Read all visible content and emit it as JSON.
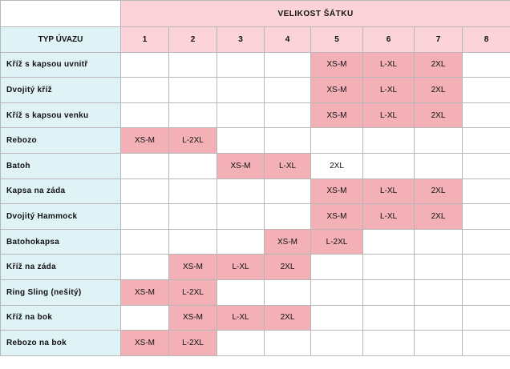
{
  "header": {
    "size_title": "VELIKOST ŠÁTKU",
    "tie_label": "TYP ÚVAZU",
    "sizes": [
      "1",
      "2",
      "3",
      "4",
      "5",
      "6",
      "7",
      "8"
    ]
  },
  "highlight_color": "#f3b0b7",
  "label_bg_color": "#dff2f6",
  "header_bg_color": "#fbd3d8",
  "rows": [
    {
      "name": "Kříž s kapsou uvnitř",
      "cells": [
        "",
        "",
        "",
        "",
        "XS-M",
        "L-XL",
        "2XL",
        ""
      ],
      "filled": [
        false,
        false,
        false,
        false,
        true,
        true,
        true,
        false
      ]
    },
    {
      "name": "Dvojitý kříž",
      "cells": [
        "",
        "",
        "",
        "",
        "XS-M",
        "L-XL",
        "2XL",
        ""
      ],
      "filled": [
        false,
        false,
        false,
        false,
        true,
        true,
        true,
        false
      ]
    },
    {
      "name": "Kříž s kapsou venku",
      "cells": [
        "",
        "",
        "",
        "",
        "XS-M",
        "L-XL",
        "2XL",
        ""
      ],
      "filled": [
        false,
        false,
        false,
        false,
        true,
        true,
        true,
        false
      ]
    },
    {
      "name": "Rebozo",
      "cells": [
        "XS-M",
        "L-2XL",
        "",
        "",
        "",
        "",
        "",
        ""
      ],
      "filled": [
        true,
        true,
        false,
        false,
        false,
        false,
        false,
        false
      ]
    },
    {
      "name": "Batoh",
      "cells": [
        "",
        "",
        "XS-M",
        "L-XL",
        "2XL",
        "",
        "",
        ""
      ],
      "filled": [
        false,
        false,
        true,
        true,
        false,
        false,
        false,
        false
      ]
    },
    {
      "name": "Kapsa na záda",
      "cells": [
        "",
        "",
        "",
        "",
        "XS-M",
        "L-XL",
        "2XL",
        ""
      ],
      "filled": [
        false,
        false,
        false,
        false,
        true,
        true,
        true,
        false
      ]
    },
    {
      "name": "Dvojitý Hammock",
      "cells": [
        "",
        "",
        "",
        "",
        "XS-M",
        "L-XL",
        "2XL",
        ""
      ],
      "filled": [
        false,
        false,
        false,
        false,
        true,
        true,
        true,
        false
      ]
    },
    {
      "name": "Batohokapsa",
      "cells": [
        "",
        "",
        "",
        "XS-M",
        "L-2XL",
        "",
        "",
        ""
      ],
      "filled": [
        false,
        false,
        false,
        true,
        true,
        false,
        false,
        false
      ]
    },
    {
      "name": "Kříž na záda",
      "cells": [
        "",
        "XS-M",
        "L-XL",
        "2XL",
        "",
        "",
        "",
        ""
      ],
      "filled": [
        false,
        true,
        true,
        true,
        false,
        false,
        false,
        false
      ]
    },
    {
      "name": "Ring Sling (nešitý)",
      "cells": [
        "XS-M",
        "L-2XL",
        "",
        "",
        "",
        "",
        "",
        ""
      ],
      "filled": [
        true,
        true,
        false,
        false,
        false,
        false,
        false,
        false
      ]
    },
    {
      "name": "Kříž na bok",
      "cells": [
        "",
        "XS-M",
        "L-XL",
        "2XL",
        "",
        "",
        "",
        ""
      ],
      "filled": [
        false,
        true,
        true,
        true,
        false,
        false,
        false,
        false
      ]
    },
    {
      "name": "Rebozo na bok",
      "cells": [
        "XS-M",
        "L-2XL",
        "",
        "",
        "",
        "",
        "",
        ""
      ],
      "filled": [
        true,
        true,
        false,
        false,
        false,
        false,
        false,
        false
      ]
    }
  ]
}
